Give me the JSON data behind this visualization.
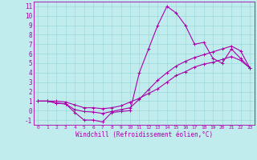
{
  "xlabel": "Windchill (Refroidissement éolien,°C)",
  "bg_color": "#c0ecee",
  "line_color": "#aa00aa",
  "grid_color": "#a0d8dc",
  "ylim": [
    -1.5,
    11.5
  ],
  "xlim": [
    -0.5,
    23.5
  ],
  "yticks": [
    -1,
    0,
    1,
    2,
    3,
    4,
    5,
    6,
    7,
    8,
    9,
    10,
    11
  ],
  "xticks": [
    0,
    1,
    2,
    3,
    4,
    5,
    6,
    7,
    8,
    9,
    10,
    11,
    12,
    13,
    14,
    15,
    16,
    17,
    18,
    19,
    20,
    21,
    22,
    23
  ],
  "line1_x": [
    0,
    1,
    2,
    3,
    4,
    5,
    6,
    7,
    8,
    9,
    10,
    11,
    12,
    13,
    14,
    15,
    16,
    17,
    18,
    19,
    20,
    21,
    22,
    23
  ],
  "line1_y": [
    1.0,
    1.0,
    0.8,
    0.7,
    -0.2,
    -1.0,
    -1.0,
    -1.2,
    -0.2,
    -0.1,
    0.0,
    4.0,
    6.5,
    9.0,
    11.0,
    10.3,
    9.0,
    7.0,
    7.2,
    5.5,
    5.0,
    6.5,
    5.5,
    4.5
  ],
  "line2_x": [
    0,
    1,
    2,
    3,
    4,
    5,
    6,
    7,
    8,
    9,
    10,
    11,
    12,
    13,
    14,
    15,
    16,
    17,
    18,
    19,
    20,
    21,
    22,
    23
  ],
  "line2_y": [
    1.0,
    1.0,
    0.8,
    0.7,
    0.1,
    -0.1,
    -0.15,
    -0.3,
    -0.1,
    0.1,
    0.3,
    1.2,
    2.2,
    3.2,
    4.0,
    4.7,
    5.2,
    5.6,
    5.9,
    6.2,
    6.5,
    6.8,
    6.3,
    4.5
  ],
  "line3_x": [
    0,
    1,
    2,
    3,
    4,
    5,
    6,
    7,
    8,
    9,
    10,
    11,
    12,
    13,
    14,
    15,
    16,
    17,
    18,
    19,
    20,
    21,
    22,
    23
  ],
  "line3_y": [
    1.0,
    1.0,
    1.0,
    0.9,
    0.6,
    0.3,
    0.3,
    0.2,
    0.3,
    0.5,
    0.9,
    1.3,
    1.8,
    2.3,
    3.0,
    3.7,
    4.1,
    4.6,
    4.9,
    5.1,
    5.4,
    5.7,
    5.3,
    4.5
  ]
}
